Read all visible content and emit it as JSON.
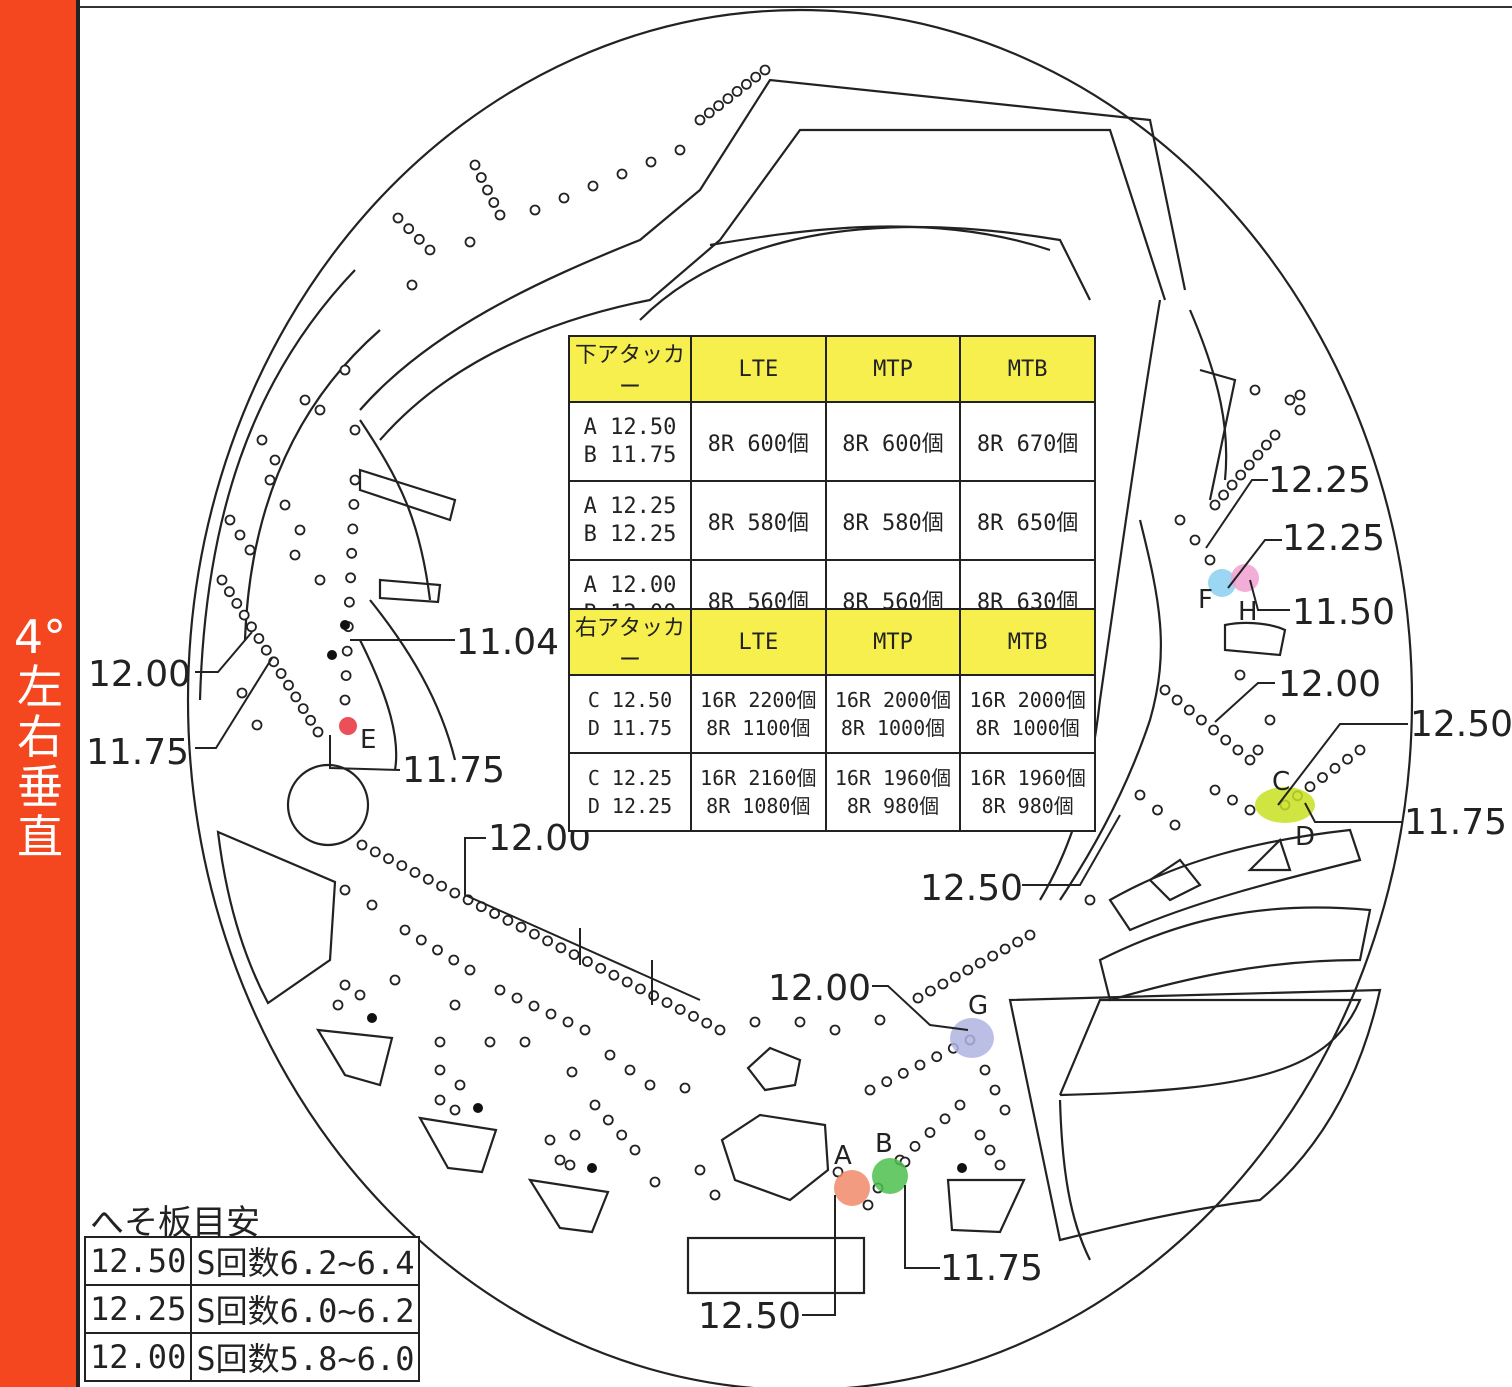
{
  "sidebar": {
    "label": "4°\n左右\n垂直",
    "color": "#f4471f"
  },
  "lower_attacker_table": {
    "header": [
      "下アタッカー",
      "LTE",
      "MTP",
      "MTB"
    ],
    "rows": [
      {
        "label": "A 12.50\nB 11.75",
        "values": [
          "8R 600個",
          "8R 600個",
          "8R 670個"
        ]
      },
      {
        "label": "A 12.25\nB 12.25",
        "values": [
          "8R 580個",
          "8R 580個",
          "8R 650個"
        ]
      },
      {
        "label": "A 12.00\nB 12.00",
        "values": [
          "8R 560個",
          "8R 560個",
          "8R 630個"
        ]
      }
    ]
  },
  "right_attacker_table": {
    "header": [
      "右アタッカー",
      "LTE",
      "MTP",
      "MTB"
    ],
    "rows": [
      {
        "label": "C 12.50\nD 11.75",
        "values": [
          "16R 2200個\n8R 1100個",
          "16R 2000個\n8R 1000個",
          "16R 2000個\n8R 1000個"
        ]
      },
      {
        "label": "C 12.25\nD 12.25",
        "values": [
          "16R 2160個\n8R 1080個",
          "16R 1960個\n8R 980個",
          "16R 1960個\n8R 980個"
        ]
      }
    ]
  },
  "annotations": {
    "left_12_00": "12.00",
    "left_11_75": "11.75",
    "left_11_04": "11.04",
    "left_11_75_e": "11.75",
    "center_12_00": "12.00",
    "right_12_25_a": "12.25",
    "right_12_25_b": "12.25",
    "right_11_50": "11.50",
    "right_12_00": "12.00",
    "right_12_50": "12.50",
    "right_11_75": "11.75",
    "mid_12_50": "12.50",
    "bottom_12_00": "12.00",
    "bottom_11_75": "11.75",
    "bottom_12_50": "12.50"
  },
  "point_labels": {
    "A": "A",
    "B": "B",
    "C": "C",
    "D": "D",
    "E": "E",
    "F": "F",
    "G": "G",
    "H": "H"
  },
  "marker_colors": {
    "A": "#f08a6a",
    "B": "#4cc04c",
    "C": "#c8e020",
    "E": "#e8303a",
    "F": "#8ad0f0",
    "G": "#b0b4e0",
    "H": "#f0a0d0"
  },
  "guide": {
    "title": "へそ板目安",
    "rows": [
      {
        "value": "12.50",
        "desc": "S回数6.2~6.4"
      },
      {
        "value": "12.25",
        "desc": "S回数6.0~6.2"
      },
      {
        "value": "12.00",
        "desc": "S回数5.8~6.0"
      }
    ]
  }
}
